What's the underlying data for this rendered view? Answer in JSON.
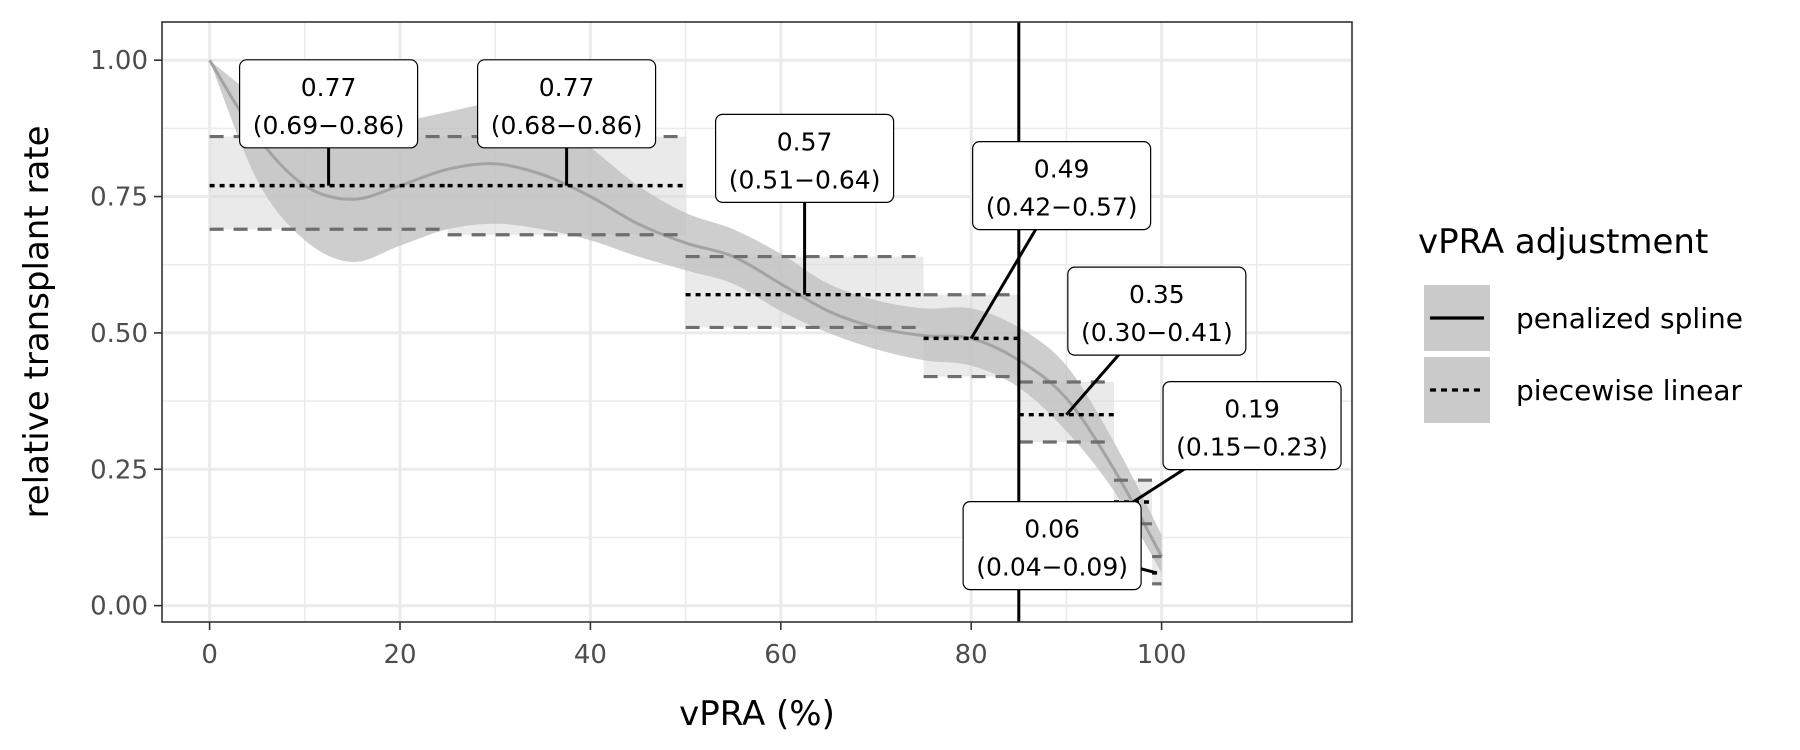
{
  "chart_data": {
    "type": "line",
    "xlabel": "vPRA (%)",
    "ylabel": "relative transplant rate",
    "xlim": [
      -5,
      120
    ],
    "ylim": [
      -0.03,
      1.07
    ],
    "x_ticks": [
      0,
      20,
      40,
      60,
      80,
      100
    ],
    "x_tick_labels": [
      "0",
      "20",
      "40",
      "60",
      "80",
      "100"
    ],
    "y_ticks": [
      0,
      0.25,
      0.5,
      0.75,
      1.0
    ],
    "y_tick_labels": [
      "0.00",
      "0.25",
      "0.50",
      "0.75",
      "1.00"
    ],
    "grid": true,
    "reference_line_x": 85,
    "legend": {
      "title": "vPRA adjustment",
      "position": "right",
      "entries": [
        {
          "label": "penalized spline",
          "linetype": "solid"
        },
        {
          "label": "piecewise linear",
          "linetype": "dotted"
        }
      ]
    },
    "spline": {
      "name": "penalized spline",
      "x": [
        0,
        5,
        10,
        15,
        20,
        25,
        30,
        35,
        40,
        45,
        50,
        55,
        60,
        65,
        70,
        75,
        80,
        85,
        90,
        95,
        100
      ],
      "y": [
        1.0,
        0.86,
        0.77,
        0.745,
        0.77,
        0.8,
        0.81,
        0.79,
        0.75,
        0.7,
        0.665,
        0.64,
        0.59,
        0.54,
        0.51,
        0.495,
        0.49,
        0.45,
        0.38,
        0.25,
        0.09
      ],
      "lower": [
        1.0,
        0.78,
        0.67,
        0.63,
        0.66,
        0.69,
        0.7,
        0.69,
        0.67,
        0.64,
        0.615,
        0.59,
        0.54,
        0.5,
        0.47,
        0.45,
        0.44,
        0.4,
        0.32,
        0.21,
        0.06
      ],
      "upper": [
        1.0,
        0.93,
        0.87,
        0.86,
        0.885,
        0.905,
        0.92,
        0.9,
        0.84,
        0.77,
        0.72,
        0.69,
        0.645,
        0.59,
        0.56,
        0.545,
        0.545,
        0.51,
        0.44,
        0.3,
        0.13
      ]
    },
    "piecewise": [
      {
        "x0": 0,
        "x1": 25,
        "est": 0.77,
        "lo": 0.69,
        "hi": 0.86,
        "label_est": "0.77",
        "label_ci": "(0.69−0.86)"
      },
      {
        "x0": 25,
        "x1": 50,
        "est": 0.77,
        "lo": 0.68,
        "hi": 0.86,
        "label_est": "0.77",
        "label_ci": "(0.68−0.86)"
      },
      {
        "x0": 50,
        "x1": 75,
        "est": 0.57,
        "lo": 0.51,
        "hi": 0.64,
        "label_est": "0.57",
        "label_ci": "(0.51−0.64)"
      },
      {
        "x0": 75,
        "x1": 85,
        "est": 0.49,
        "lo": 0.42,
        "hi": 0.57,
        "label_est": "0.49",
        "label_ci": "(0.42−0.57)"
      },
      {
        "x0": 85,
        "x1": 95,
        "est": 0.35,
        "lo": 0.3,
        "hi": 0.41,
        "label_est": "0.35",
        "label_ci": "(0.30−0.41)"
      },
      {
        "x0": 95,
        "x1": 99,
        "est": 0.19,
        "lo": 0.15,
        "hi": 0.23,
        "label_est": "0.19",
        "label_ci": "(0.15−0.23)"
      },
      {
        "x0": 99,
        "x1": 100,
        "est": 0.06,
        "lo": 0.04,
        "hi": 0.09,
        "label_est": "0.06",
        "label_ci": "(0.04−0.09)"
      }
    ],
    "annotations": [
      {
        "label_x": 12.5,
        "label_y": 0.92,
        "point_x": 12.5,
        "point_y": 0.77
      },
      {
        "label_x": 37.5,
        "label_y": 0.92,
        "point_x": 37.5,
        "point_y": 0.77
      },
      {
        "label_x": 62.5,
        "label_y": 0.82,
        "point_x": 62.5,
        "point_y": 0.57
      },
      {
        "label_x": 89.5,
        "label_y": 0.77,
        "point_x": 80.0,
        "point_y": 0.49
      },
      {
        "label_x": 99.5,
        "label_y": 0.54,
        "point_x": 90.0,
        "point_y": 0.35
      },
      {
        "label_x": 109.5,
        "label_y": 0.33,
        "point_x": 97.0,
        "point_y": 0.19
      },
      {
        "label_x": 88.5,
        "label_y": 0.11,
        "point_x": 99.5,
        "point_y": 0.06
      }
    ],
    "colors": {
      "ribbon": "#bdbdbd",
      "spline_line": "#a3a3a3",
      "piecewise_line": "#000000",
      "ci_dash": "#6e6e6e",
      "segment_band": "#d9d9d9",
      "grid": "#ebebeb",
      "reference_line": "#000000"
    }
  }
}
